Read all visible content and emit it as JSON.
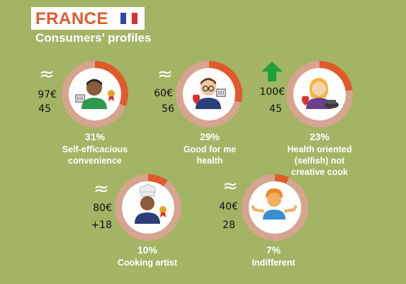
{
  "header": {
    "title": "FRANCE",
    "subtitle": "Consumers’ profiles"
  },
  "colors": {
    "background": "#a3b465",
    "ring": "#d6a48f",
    "segment": "#e05a2b",
    "title": "#e05a2b"
  },
  "profiles": [
    {
      "id": "self-efficacious",
      "indicator": "≈",
      "price": "97€",
      "count": "45",
      "percent": "31%",
      "share": 0.31,
      "label_lines": [
        "Self-efficacious",
        "convenience"
      ]
    },
    {
      "id": "good-for-me",
      "indicator": "≈",
      "price": "60€",
      "count": "56",
      "percent": "29%",
      "share": 0.29,
      "label_lines": [
        "Good for me",
        "health"
      ]
    },
    {
      "id": "health-oriented",
      "indicator": "up-arrow-icon",
      "price": "100€",
      "count": "45",
      "percent": "23%",
      "share": 0.23,
      "label_lines": [
        "Health oriented",
        "(selfish) not",
        "creative cook"
      ]
    },
    {
      "id": "cooking-artist",
      "indicator": "≈",
      "price": "80€",
      "count": "+18",
      "percent": "10%",
      "share": 0.1,
      "label_lines": [
        "Cooking artist"
      ]
    },
    {
      "id": "indifferent",
      "indicator": "≈",
      "price": "40€",
      "count": "28",
      "percent": "7%",
      "share": 0.07,
      "label_lines": [
        "Indifferent"
      ]
    }
  ]
}
